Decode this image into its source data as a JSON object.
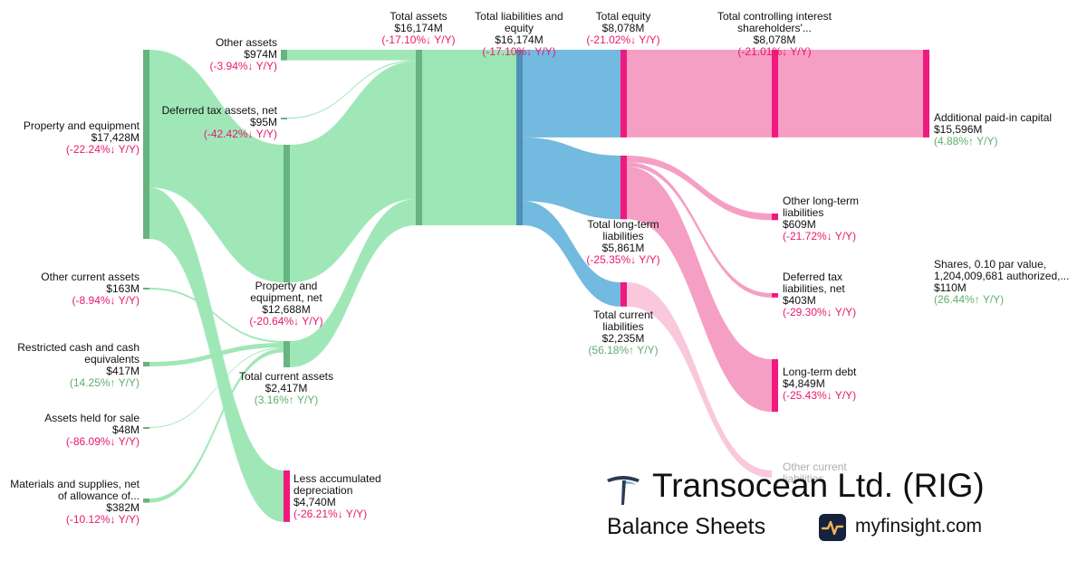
{
  "brand": {
    "company": "Transocean Ltd. (RIG)",
    "statement": "Balance Sheets",
    "site": "myfinsight.com",
    "logo_icon": "transocean-t-logo-icon",
    "site_icon": "myfinsight-pulse-icon"
  },
  "colors": {
    "asset_flow": "#9be6b4",
    "asset_node": "#66b47e",
    "total_node": "#4f8fb5",
    "total_flow": "#6ab6dd",
    "liability_flow": "#f49ac1",
    "liability_node": "#f0197e",
    "negative": "#e8196d",
    "positive": "#5fae6d"
  },
  "chart_data": {
    "type": "sankey",
    "title": "Balance Sheets",
    "units": "USD millions",
    "nodes": [
      {
        "id": "ppe_gross",
        "name": "Property and equipment",
        "value": "$17,428M",
        "change": "(-22.24%↓ Y/Y)",
        "direction": "down",
        "amount": 17428
      },
      {
        "id": "less_dep",
        "name": "Less accumulated depreciation",
        "value": "$4,740M",
        "change": "(-26.21%↓ Y/Y)",
        "direction": "down",
        "amount": 4740
      },
      {
        "id": "other_ca",
        "name": "Other current assets",
        "value": "$163M",
        "change": "(-8.94%↓ Y/Y)",
        "direction": "down",
        "amount": 163
      },
      {
        "id": "restricted",
        "name": "Restricted cash and cash equivalents",
        "value": "$417M",
        "change": "(14.25%↑ Y/Y)",
        "direction": "up",
        "amount": 417
      },
      {
        "id": "held_sale",
        "name": "Assets held for sale",
        "value": "$48M",
        "change": "(-86.09%↓ Y/Y)",
        "direction": "down",
        "amount": 48
      },
      {
        "id": "materials",
        "name": "Materials and supplies, net of allowance of...",
        "value": "$382M",
        "change": "(-10.12%↓ Y/Y)",
        "direction": "down",
        "amount": 382
      },
      {
        "id": "other_assets",
        "name": "Other assets",
        "value": "$974M",
        "change": "(-3.94%↓ Y/Y)",
        "direction": "down",
        "amount": 974
      },
      {
        "id": "deferred_tax_assets",
        "name": "Deferred tax assets, net",
        "value": "$95M",
        "change": "(-42.42%↓ Y/Y)",
        "direction": "down",
        "amount": 95
      },
      {
        "id": "ppe_net",
        "name": "Property and equipment, net",
        "value": "$12,688M",
        "change": "(-20.64%↓ Y/Y)",
        "direction": "down",
        "amount": 12688
      },
      {
        "id": "total_ca",
        "name": "Total current assets",
        "value": "$2,417M",
        "change": "(3.16%↑ Y/Y)",
        "direction": "up",
        "amount": 2417
      },
      {
        "id": "total_assets",
        "name": "Total assets",
        "value": "$16,174M",
        "change": "(-17.10%↓ Y/Y)",
        "direction": "down",
        "amount": 16174
      },
      {
        "id": "total_le",
        "name": "Total liabilities and equity",
        "value": "$16,174M",
        "change": "(-17.10%↓ Y/Y)",
        "direction": "down",
        "amount": 16174
      },
      {
        "id": "total_equity",
        "name": "Total equity",
        "value": "$8,078M",
        "change": "(-21.02%↓ Y/Y)",
        "direction": "down",
        "amount": 8078
      },
      {
        "id": "total_ltl",
        "name": "Total long-term liabilities",
        "value": "$5,861M",
        "change": "(-25.35%↓ Y/Y)",
        "direction": "down",
        "amount": 5861
      },
      {
        "id": "total_cl",
        "name": "Total current liabilities",
        "value": "$2,235M",
        "change": "(56.18%↑ Y/Y)",
        "direction": "up",
        "amount": 2235
      },
      {
        "id": "tcse",
        "name": "Total controlling interest shareholders'...",
        "value": "$8,078M",
        "change": "(-21.01%↓ Y/Y)",
        "direction": "down",
        "amount": 8078
      },
      {
        "id": "apic",
        "name": "Additional paid-in capital",
        "value": "$15,596M",
        "change": "(4.88%↑ Y/Y)",
        "direction": "up",
        "amount": 15596
      },
      {
        "id": "shares",
        "name": "Shares, 0.10 par value, 1,204,009,681 authorized,...",
        "value": "$110M",
        "change": "(26.44%↑ Y/Y)",
        "direction": "up",
        "amount": 110
      },
      {
        "id": "other_ltl",
        "name": "Other long-term liabilities",
        "value": "$609M",
        "change": "(-21.72%↓ Y/Y)",
        "direction": "down",
        "amount": 609
      },
      {
        "id": "deferred_tax_liab",
        "name": "Deferred tax liabilities, net",
        "value": "$403M",
        "change": "(-29.30%↓ Y/Y)",
        "direction": "down",
        "amount": 403
      },
      {
        "id": "ltd",
        "name": "Long-term debt",
        "value": "$4,849M",
        "change": "(-25.43%↓ Y/Y)",
        "direction": "down",
        "amount": 4849
      },
      {
        "id": "other_cl",
        "name": "Other current liabilities",
        "value": "",
        "change": "",
        "direction": "",
        "amount": 0
      }
    ],
    "links": [
      {
        "source": "ppe_gross",
        "target": "ppe_net",
        "value": 12688
      },
      {
        "source": "ppe_gross",
        "target": "less_dep",
        "value": 4740
      },
      {
        "source": "other_ca",
        "target": "total_ca",
        "value": 163
      },
      {
        "source": "restricted",
        "target": "total_ca",
        "value": 417
      },
      {
        "source": "held_sale",
        "target": "total_ca",
        "value": 48
      },
      {
        "source": "materials",
        "target": "total_ca",
        "value": 382
      },
      {
        "source": "other_assets",
        "target": "total_assets",
        "value": 974
      },
      {
        "source": "deferred_tax_assets",
        "target": "total_assets",
        "value": 95
      },
      {
        "source": "ppe_net",
        "target": "total_assets",
        "value": 12688
      },
      {
        "source": "total_ca",
        "target": "total_assets",
        "value": 2417
      },
      {
        "source": "total_assets",
        "target": "total_le",
        "value": 16174
      },
      {
        "source": "total_le",
        "target": "total_equity",
        "value": 8078
      },
      {
        "source": "total_le",
        "target": "total_ltl",
        "value": 5861
      },
      {
        "source": "total_le",
        "target": "total_cl",
        "value": 2235
      },
      {
        "source": "total_equity",
        "target": "tcse",
        "value": 8078
      },
      {
        "source": "tcse",
        "target": "apic",
        "value": 8078
      },
      {
        "source": "total_ltl",
        "target": "other_ltl",
        "value": 609
      },
      {
        "source": "total_ltl",
        "target": "deferred_tax_liab",
        "value": 403
      },
      {
        "source": "total_ltl",
        "target": "ltd",
        "value": 4849
      },
      {
        "source": "total_cl",
        "target": "other_cl",
        "value": 2235
      }
    ]
  }
}
